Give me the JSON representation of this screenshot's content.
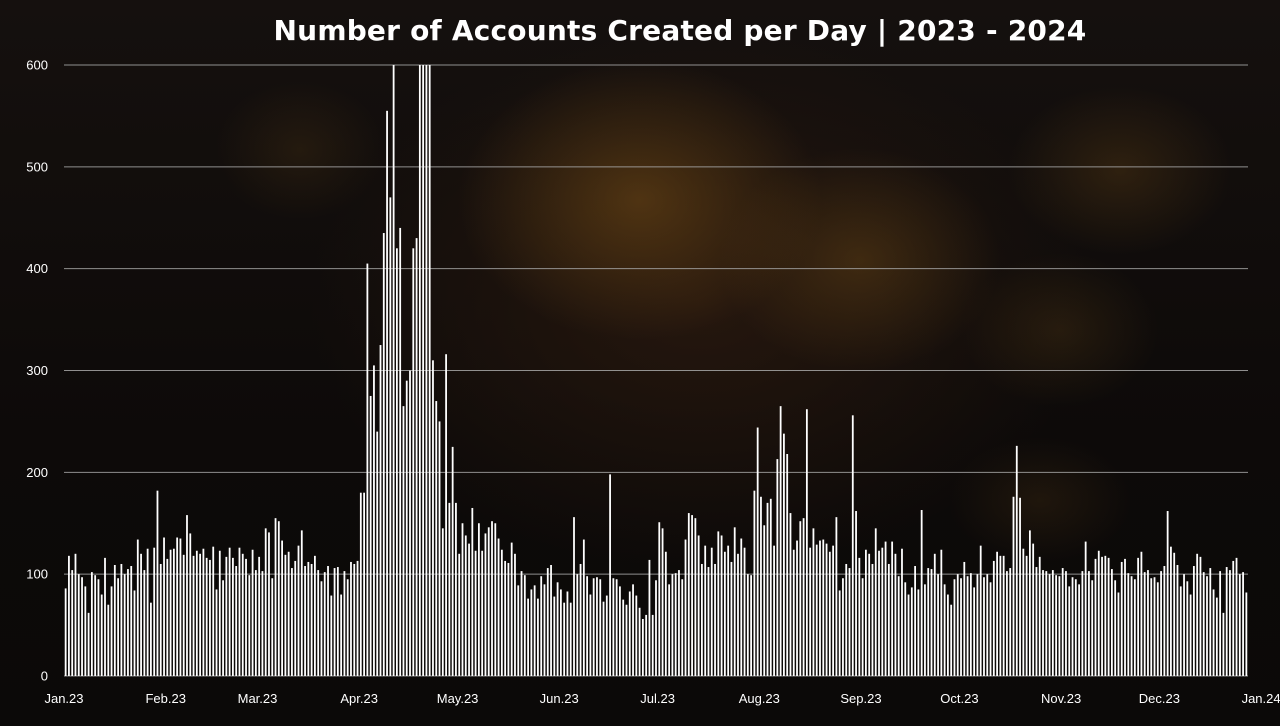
{
  "chart_data": {
    "type": "bar",
    "title": "Number of Accounts Created per Day | 2023 - 2024",
    "ylim": [
      0,
      600
    ],
    "yticks": [
      0,
      100,
      200,
      300,
      400,
      500,
      600
    ],
    "grid": true,
    "xticks": [
      {
        "label": "Jan.23",
        "day": 0
      },
      {
        "label": "Feb.23",
        "day": 31
      },
      {
        "label": "Mar.23",
        "day": 59
      },
      {
        "label": "Apr.23",
        "day": 90
      },
      {
        "label": "May.23",
        "day": 120
      },
      {
        "label": "Jun.23",
        "day": 151
      },
      {
        "label": "Jul.23",
        "day": 181
      },
      {
        "label": "Aug.23",
        "day": 212
      },
      {
        "label": "Sep.23",
        "day": 243
      },
      {
        "label": "Oct.23",
        "day": 273
      },
      {
        "label": "Nov.23",
        "day": 304
      },
      {
        "label": "Dec.23",
        "day": 334
      },
      {
        "label": "Jan.24",
        "day": 365
      }
    ],
    "values": [
      86,
      118,
      104,
      120,
      100,
      97,
      88,
      62,
      102,
      99,
      95,
      80,
      116,
      70,
      88,
      109,
      96,
      110,
      100,
      105,
      108,
      84,
      134,
      120,
      104,
      125,
      72,
      126,
      182,
      110,
      136,
      115,
      124,
      125,
      136,
      135,
      119,
      158,
      140,
      118,
      123,
      120,
      125,
      116,
      114,
      127,
      85,
      123,
      94,
      117,
      126,
      116,
      108,
      126,
      120,
      115,
      99,
      124,
      104,
      117,
      103,
      145,
      141,
      96,
      155,
      152,
      133,
      119,
      122,
      106,
      113,
      128,
      143,
      108,
      112,
      110,
      118,
      104,
      93,
      102,
      108,
      79,
      106,
      107,
      80,
      103,
      95,
      112,
      110,
      113,
      180,
      180,
      405,
      275,
      305,
      240,
      325,
      435,
      555,
      470,
      600,
      420,
      440,
      265,
      290,
      300,
      420,
      430,
      600,
      600,
      600,
      600,
      310,
      270,
      250,
      145,
      316,
      170,
      225,
      170,
      120,
      150,
      138,
      130,
      165,
      123,
      150,
      123,
      140,
      146,
      152,
      150,
      135,
      124,
      113,
      111,
      131,
      120,
      89,
      103,
      99,
      76,
      85,
      89,
      76,
      98,
      90,
      106,
      109,
      78,
      92,
      85,
      72,
      83,
      72,
      156,
      100,
      110,
      134,
      98,
      80,
      96,
      97,
      95,
      73,
      79,
      198,
      96,
      95,
      88,
      75,
      70,
      83,
      90,
      79,
      67,
      56,
      60,
      114,
      60,
      94,
      151,
      145,
      122,
      90,
      100,
      101,
      104,
      95,
      134,
      160,
      158,
      155,
      138,
      110,
      128,
      107,
      126,
      110,
      142,
      138,
      122,
      128,
      112,
      146,
      120,
      135,
      126,
      100,
      99,
      182,
      244,
      176,
      148,
      170,
      174,
      128,
      213,
      265,
      238,
      218,
      160,
      124,
      133,
      152,
      155,
      262,
      126,
      145,
      129,
      133,
      134,
      130,
      122,
      128,
      156,
      84,
      96,
      110,
      106,
      256,
      162,
      116,
      96,
      124,
      120,
      110,
      145,
      123,
      126,
      132,
      110,
      132,
      120,
      98,
      125,
      92,
      80,
      87,
      108,
      85,
      163,
      90,
      106,
      105,
      120,
      100,
      124,
      90,
      80,
      70,
      95,
      100,
      96,
      112,
      98,
      101,
      87,
      100,
      128,
      97,
      100,
      92,
      113,
      122,
      118,
      118,
      103,
      106,
      176,
      226,
      175,
      125,
      118,
      143,
      130,
      107,
      117,
      104,
      103,
      100,
      104,
      99,
      98,
      106,
      103,
      88,
      97,
      95,
      90,
      103,
      132,
      103,
      94,
      115,
      123,
      117,
      118,
      116,
      105,
      94,
      82,
      112,
      115,
      101,
      98,
      95,
      116,
      122,
      102,
      104,
      96,
      97,
      92,
      103,
      108,
      162,
      127,
      121,
      109,
      88,
      100,
      93,
      80,
      108,
      120,
      117,
      102,
      98,
      106,
      85,
      77,
      103,
      62,
      107,
      104,
      113,
      116,
      100,
      102,
      82
    ]
  }
}
